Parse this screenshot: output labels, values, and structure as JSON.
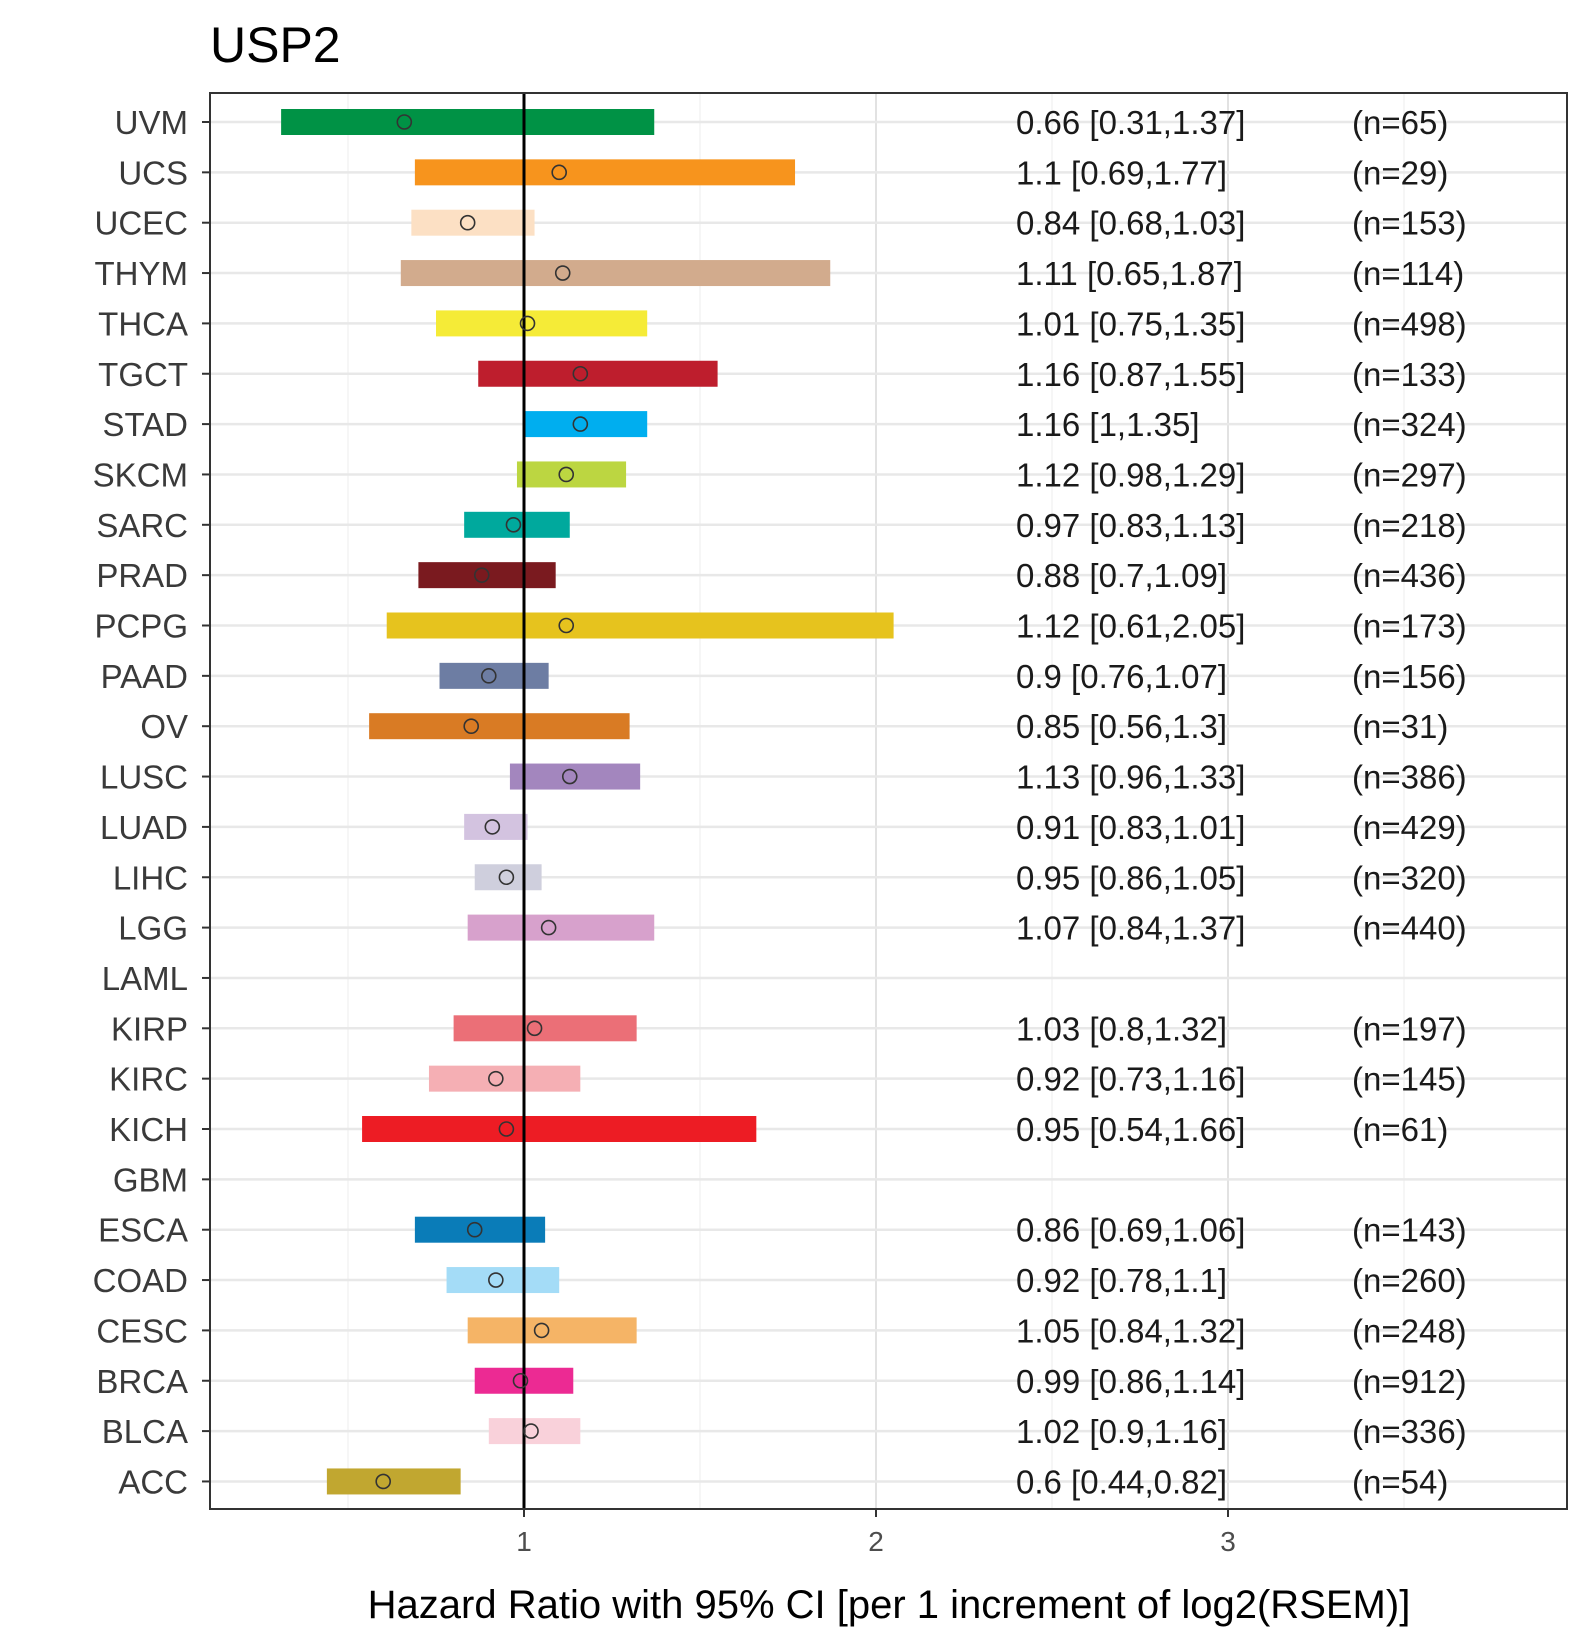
{
  "chart_data": {
    "type": "forest",
    "title": "USP2",
    "xlabel": "Hazard Ratio with 95% CI [per 1 increment of log2(RSEM)]",
    "ylabel": "",
    "xlim": [
      0.1,
      4.0
    ],
    "xticks": [
      1,
      2,
      3
    ],
    "xtick_labels": [
      "1",
      "2",
      "3"
    ],
    "reference_line": 1,
    "grid": true,
    "rows": [
      {
        "label": "UVM",
        "hr": 0.66,
        "lo": 0.31,
        "hi": 1.37,
        "text": "0.66 [0.31,1.37]",
        "n": "(n=65)",
        "color": "#009245"
      },
      {
        "label": "UCS",
        "hr": 1.1,
        "lo": 0.69,
        "hi": 1.77,
        "text": "1.1 [0.69,1.77]",
        "n": "(n=29)",
        "color": "#F7941D"
      },
      {
        "label": "UCEC",
        "hr": 0.84,
        "lo": 0.68,
        "hi": 1.03,
        "text": "0.84 [0.68,1.03]",
        "n": "(n=153)",
        "color": "#FCE0C4"
      },
      {
        "label": "THYM",
        "hr": 1.11,
        "lo": 0.65,
        "hi": 1.87,
        "text": "1.11 [0.65,1.87]",
        "n": "(n=114)",
        "color": "#D2AB8D"
      },
      {
        "label": "THCA",
        "hr": 1.01,
        "lo": 0.75,
        "hi": 1.35,
        "text": "1.01 [0.75,1.35]",
        "n": "(n=498)",
        "color": "#F5EB37"
      },
      {
        "label": "TGCT",
        "hr": 1.16,
        "lo": 0.87,
        "hi": 1.55,
        "text": "1.16 [0.87,1.55]",
        "n": "(n=133)",
        "color": "#BE1E2D"
      },
      {
        "label": "STAD",
        "hr": 1.16,
        "lo": 1,
        "hi": 1.35,
        "text": "1.16 [1,1.35]",
        "n": "(n=324)",
        "color": "#00AEEF"
      },
      {
        "label": "SKCM",
        "hr": 1.12,
        "lo": 0.98,
        "hi": 1.29,
        "text": "1.12 [0.98,1.29]",
        "n": "(n=297)",
        "color": "#BCD641"
      },
      {
        "label": "SARC",
        "hr": 0.97,
        "lo": 0.83,
        "hi": 1.13,
        "text": "0.97 [0.83,1.13]",
        "n": "(n=218)",
        "color": "#00A99D"
      },
      {
        "label": "PRAD",
        "hr": 0.88,
        "lo": 0.7,
        "hi": 1.09,
        "text": "0.88 [0.7,1.09]",
        "n": "(n=436)",
        "color": "#7A1A1F"
      },
      {
        "label": "PCPG",
        "hr": 1.12,
        "lo": 0.61,
        "hi": 2.05,
        "text": "1.12 [0.61,2.05]",
        "n": "(n=173)",
        "color": "#E6C31E"
      },
      {
        "label": "PAAD",
        "hr": 0.9,
        "lo": 0.76,
        "hi": 1.07,
        "text": "0.9 [0.76,1.07]",
        "n": "(n=156)",
        "color": "#6D7DA3"
      },
      {
        "label": "OV",
        "hr": 0.85,
        "lo": 0.56,
        "hi": 1.3,
        "text": "0.85 [0.56,1.3]",
        "n": "(n=31)",
        "color": "#D97B24"
      },
      {
        "label": "LUSC",
        "hr": 1.13,
        "lo": 0.96,
        "hi": 1.33,
        "text": "1.13 [0.96,1.33]",
        "n": "(n=386)",
        "color": "#A386BE"
      },
      {
        "label": "LUAD",
        "hr": 0.91,
        "lo": 0.83,
        "hi": 1.01,
        "text": "0.91 [0.83,1.01]",
        "n": "(n=429)",
        "color": "#D3C3E0"
      },
      {
        "label": "LIHC",
        "hr": 0.95,
        "lo": 0.86,
        "hi": 1.05,
        "text": "0.95 [0.86,1.05]",
        "n": "(n=320)",
        "color": "#CFCFDD"
      },
      {
        "label": "LGG",
        "hr": 1.07,
        "lo": 0.84,
        "hi": 1.37,
        "text": "1.07 [0.84,1.37]",
        "n": "(n=440)",
        "color": "#D7A1CC"
      },
      {
        "label": "LAML",
        "hr": null,
        "lo": null,
        "hi": null,
        "text": "",
        "n": "",
        "color": "#ffffff"
      },
      {
        "label": "KIRP",
        "hr": 1.03,
        "lo": 0.8,
        "hi": 1.32,
        "text": "1.03 [0.8,1.32]",
        "n": "(n=197)",
        "color": "#EB6F77"
      },
      {
        "label": "KIRC",
        "hr": 0.92,
        "lo": 0.73,
        "hi": 1.16,
        "text": "0.92 [0.73,1.16]",
        "n": "(n=145)",
        "color": "#F5AFB4"
      },
      {
        "label": "KICH",
        "hr": 0.95,
        "lo": 0.54,
        "hi": 1.66,
        "text": "0.95 [0.54,1.66]",
        "n": "(n=61)",
        "color": "#ED1C24"
      },
      {
        "label": "GBM",
        "hr": null,
        "lo": null,
        "hi": null,
        "text": "",
        "n": "",
        "color": "#ffffff"
      },
      {
        "label": "ESCA",
        "hr": 0.86,
        "lo": 0.69,
        "hi": 1.06,
        "text": "0.86 [0.69,1.06]",
        "n": "(n=143)",
        "color": "#0A7CB8"
      },
      {
        "label": "COAD",
        "hr": 0.92,
        "lo": 0.78,
        "hi": 1.1,
        "text": "0.92 [0.78,1.1]",
        "n": "(n=260)",
        "color": "#A4DCF7"
      },
      {
        "label": "CESC",
        "hr": 1.05,
        "lo": 0.84,
        "hi": 1.32,
        "text": "1.05 [0.84,1.32]",
        "n": "(n=248)",
        "color": "#F5B466"
      },
      {
        "label": "BRCA",
        "hr": 0.99,
        "lo": 0.86,
        "hi": 1.14,
        "text": "0.99 [0.86,1.14]",
        "n": "(n=912)",
        "color": "#EC2A93"
      },
      {
        "label": "BLCA",
        "hr": 1.02,
        "lo": 0.9,
        "hi": 1.16,
        "text": "1.02 [0.9,1.16]",
        "n": "(n=336)",
        "color": "#F9D1DA"
      },
      {
        "label": "ACC",
        "hr": 0.6,
        "lo": 0.44,
        "hi": 0.82,
        "text": "0.6 [0.44,0.82]",
        "n": "(n=54)",
        "color": "#C1A730"
      }
    ]
  }
}
